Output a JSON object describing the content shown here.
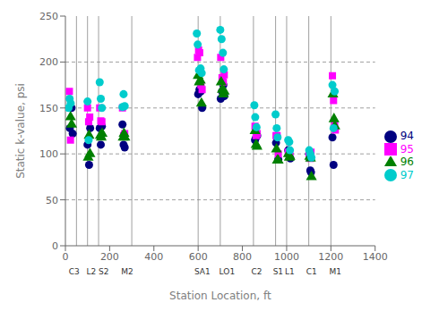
{
  "chart_data": {
    "type": "scatter",
    "xlabel": "Station Location, ft",
    "ylabel": "Static k-value, psi",
    "xlim": [
      0,
      1400
    ],
    "ylim": [
      0,
      250
    ],
    "xticks": [
      0,
      200,
      400,
      600,
      800,
      1000,
      1200,
      1400
    ],
    "yticks": [
      0,
      50,
      100,
      150,
      200,
      250
    ],
    "hlines": [
      50,
      100,
      150,
      200
    ],
    "vlines": [
      50,
      100,
      150,
      300,
      600,
      700,
      850,
      950,
      1000,
      1100,
      1200
    ],
    "annotations": [
      {
        "text": "C3",
        "x": 15
      },
      {
        "text": "L2",
        "x": 95
      },
      {
        "text": "S2",
        "x": 150
      },
      {
        "text": "M2",
        "x": 252
      },
      {
        "text": "SA1",
        "x": 583
      },
      {
        "text": "LO1",
        "x": 695
      },
      {
        "text": "C2",
        "x": 840
      },
      {
        "text": "S1",
        "x": 938
      },
      {
        "text": "L1",
        "x": 992
      },
      {
        "text": "C1",
        "x": 1088
      },
      {
        "text": "M1",
        "x": 1193
      }
    ],
    "legend": "right",
    "series": [
      {
        "name": "94",
        "color": "#000080",
        "marker": "circle",
        "x": [
          20,
          28,
          33,
          100,
          107,
          112,
          155,
          160,
          165,
          258,
          263,
          268,
          600,
          606,
          612,
          618,
          702,
          708,
          714,
          718,
          857,
          862,
          867,
          952,
          957,
          962,
          1007,
          1012,
          1017,
          1102,
          1107,
          1110,
          1207,
          1212
        ],
        "values": [
          128,
          150,
          122,
          110,
          88,
          128,
          128,
          110,
          130,
          132,
          110,
          107,
          165,
          170,
          168,
          150,
          160,
          168,
          175,
          163,
          115,
          118,
          120,
          112,
          118,
          94,
          104,
          100,
          95,
          100,
          82,
          80,
          118,
          88
        ]
      },
      {
        "name": "95",
        "color": "#ff00ff",
        "marker": "square",
        "x": [
          18,
          23,
          100,
          105,
          110,
          155,
          160,
          165,
          258,
          263,
          268,
          597,
          602,
          607,
          613,
          618,
          702,
          708,
          714,
          718,
          857,
          862,
          867,
          952,
          957,
          962,
          1007,
          1010,
          1014,
          1102,
          1107,
          1110,
          1207,
          1212,
          1217,
          1220
        ],
        "values": [
          168,
          115,
          150,
          135,
          140,
          150,
          136,
          135,
          150,
          120,
          122,
          205,
          213,
          210,
          175,
          170,
          205,
          183,
          178,
          186,
          130,
          120,
          122,
          120,
          120,
          100,
          102,
          100,
          100,
          100,
          95,
          102,
          185,
          158,
          132,
          126
        ]
      },
      {
        "name": "96",
        "color": "#008000",
        "marker": "triangle",
        "x": [
          23,
          28,
          103,
          107,
          111,
          158,
          162,
          166,
          261,
          265,
          269,
          600,
          605,
          610,
          615,
          704,
          709,
          714,
          718,
          857,
          862,
          866,
          954,
          958,
          962,
          1008,
          1012,
          1015,
          1104,
          1108,
          1112,
          1209,
          1214,
          1218
        ],
        "values": [
          140,
          132,
          96,
          120,
          100,
          120,
          118,
          122,
          118,
          122,
          118,
          185,
          178,
          180,
          155,
          178,
          170,
          165,
          168,
          125,
          110,
          108,
          105,
          93,
          93,
          100,
          96,
          97,
          97,
          95,
          75,
          165,
          138,
          130
        ]
      },
      {
        "name": "97",
        "color": "#00cccc",
        "marker": "circle",
        "x": [
          14,
          19,
          24,
          100,
          105,
          155,
          160,
          165,
          258,
          263,
          268,
          594,
          598,
          604,
          611,
          616,
          700,
          706,
          712,
          716,
          854,
          858,
          864,
          950,
          955,
          959,
          1007,
          1012,
          1015,
          1102,
          1107,
          1112,
          1207,
          1212,
          1217
        ],
        "values": [
          150,
          160,
          155,
          157,
          115,
          178,
          160,
          150,
          151,
          165,
          152,
          231,
          219,
          191,
          193,
          188,
          235,
          225,
          210,
          192,
          153,
          140,
          129,
          143,
          128,
          118,
          115,
          113,
          104,
          104,
          100,
          96,
          175,
          128,
          168
        ]
      }
    ]
  }
}
